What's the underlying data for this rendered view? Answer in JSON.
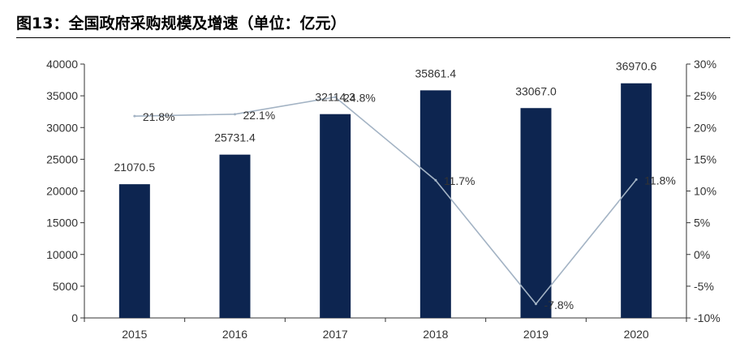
{
  "title": "图13：全国政府采购规模及增速（单位：亿元）",
  "chart_data": {
    "type": "bar",
    "categories": [
      "2015",
      "2016",
      "2017",
      "2018",
      "2019",
      "2020"
    ],
    "series": [
      {
        "type": "bar",
        "values": [
          21070.5,
          25731.4,
          32114.3,
          35861.4,
          33067.0,
          36970.6
        ],
        "labels": [
          "21070.5",
          "25731.4",
          "32114.3",
          "35861.4",
          "33067.0",
          "36970.6"
        ],
        "color": "#0d2550",
        "axis": "left"
      },
      {
        "type": "line",
        "values": [
          21.8,
          22.1,
          24.8,
          11.7,
          -7.8,
          11.8
        ],
        "labels": [
          "21.8%",
          "22.1%",
          "24.8%",
          "11.7%",
          "-7.8%",
          "11.8%"
        ],
        "color": "#a3b3c4",
        "axis": "right"
      }
    ],
    "ylim": [
      0,
      40000
    ],
    "yticks": [
      "0",
      "5000",
      "10000",
      "15000",
      "20000",
      "25000",
      "30000",
      "35000",
      "40000"
    ],
    "y2lim": [
      -10,
      30
    ],
    "y2ticks": [
      "-10%",
      "-5%",
      "0%",
      "5%",
      "10%",
      "15%",
      "20%",
      "25%",
      "30%"
    ],
    "grid": false,
    "legend": "none"
  }
}
